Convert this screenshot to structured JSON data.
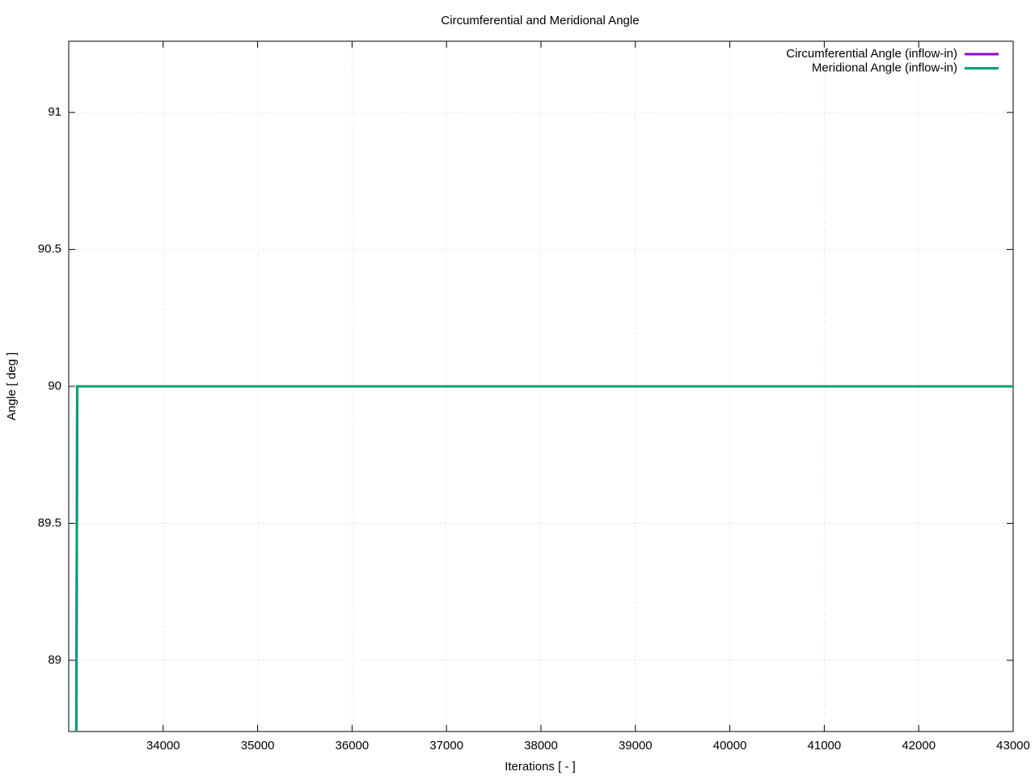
{
  "chart_data": {
    "type": "line",
    "title": "Circumferential and Meridional Angle",
    "x_label": "Iterations [ - ]",
    "y_label": "Angle [ deg ]",
    "x": [
      33080,
      33090,
      43000
    ],
    "series": [
      {
        "name": "Circumferential Angle (inflow-in)",
        "color": "#9400d3",
        "values": [
          88.7,
          90,
          90
        ]
      },
      {
        "name": "Meridional Angle (inflow-in)",
        "color": "#009e73",
        "values": [
          88.7,
          90,
          90
        ]
      }
    ],
    "xlim": [
      33000,
      43000
    ],
    "xticks": [
      34000,
      35000,
      36000,
      37000,
      38000,
      39000,
      40000,
      41000,
      42000,
      43000
    ],
    "ylim": [
      88.74,
      91.26
    ],
    "yticks": [
      89,
      89.5,
      90,
      90.5,
      91
    ],
    "grid": true,
    "legend": "top-right"
  }
}
